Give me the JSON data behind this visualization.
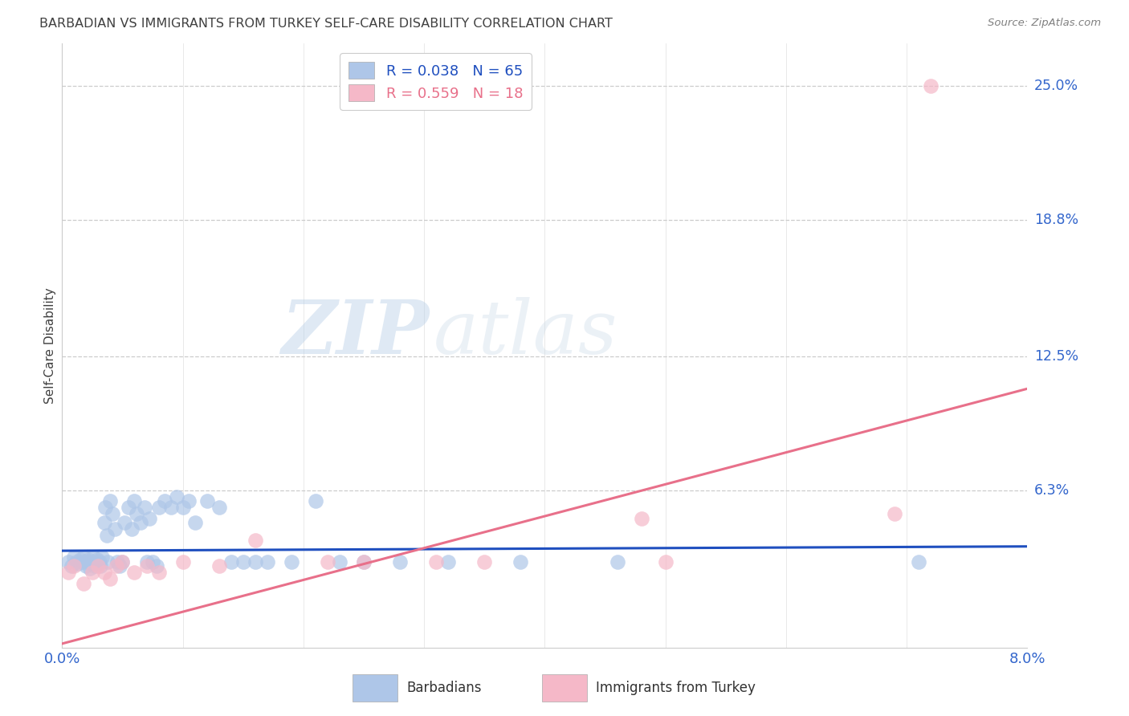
{
  "title": "BARBADIAN VS IMMIGRANTS FROM TURKEY SELF-CARE DISABILITY CORRELATION CHART",
  "source": "Source: ZipAtlas.com",
  "ylabel": "Self-Care Disability",
  "xlim": [
    0.0,
    8.0
  ],
  "ylim": [
    -1.0,
    27.0
  ],
  "ytick_values": [
    6.3,
    12.5,
    18.8,
    25.0
  ],
  "ytick_labels": [
    "6.3%",
    "12.5%",
    "18.8%",
    "25.0%"
  ],
  "barbadian_color": "#aec6e8",
  "turkey_color": "#f5b8c8",
  "regression_blue": "#1f4fbf",
  "regression_pink": "#e8708a",
  "axis_label_color": "#3366cc",
  "title_color": "#404040",
  "watermark_zip": "ZIP",
  "watermark_atlas": "atlas",
  "barbadians_x": [
    0.05,
    0.08,
    0.1,
    0.12,
    0.13,
    0.15,
    0.17,
    0.18,
    0.2,
    0.21,
    0.22,
    0.23,
    0.24,
    0.25,
    0.26,
    0.27,
    0.28,
    0.29,
    0.3,
    0.31,
    0.32,
    0.33,
    0.35,
    0.36,
    0.37,
    0.38,
    0.4,
    0.42,
    0.44,
    0.46,
    0.48,
    0.5,
    0.52,
    0.55,
    0.58,
    0.6,
    0.62,
    0.65,
    0.68,
    0.7,
    0.72,
    0.75,
    0.78,
    0.8,
    0.85,
    0.9,
    0.95,
    1.0,
    1.05,
    1.1,
    1.2,
    1.3,
    1.4,
    1.5,
    1.6,
    1.7,
    1.9,
    2.1,
    2.3,
    2.5,
    2.8,
    3.2,
    3.8,
    4.6,
    7.1
  ],
  "barbadians_y": [
    3.0,
    2.8,
    3.2,
    3.0,
    2.9,
    3.1,
    3.0,
    3.2,
    2.8,
    3.0,
    3.1,
    2.7,
    3.0,
    2.9,
    3.2,
    2.8,
    3.0,
    3.1,
    2.9,
    3.0,
    2.8,
    3.2,
    4.8,
    5.5,
    4.2,
    3.0,
    5.8,
    5.2,
    4.5,
    3.0,
    2.8,
    3.0,
    4.8,
    5.5,
    4.5,
    5.8,
    5.2,
    4.8,
    5.5,
    3.0,
    5.0,
    3.0,
    2.8,
    5.5,
    5.8,
    5.5,
    6.0,
    5.5,
    5.8,
    4.8,
    5.8,
    5.5,
    3.0,
    3.0,
    3.0,
    3.0,
    3.0,
    5.8,
    3.0,
    3.0,
    3.0,
    3.0,
    3.0,
    3.0,
    3.0
  ],
  "turkey_x": [
    0.05,
    0.1,
    0.18,
    0.25,
    0.3,
    0.35,
    0.4,
    0.45,
    0.5,
    0.6,
    0.7,
    0.8,
    1.0,
    1.3,
    1.6,
    2.2,
    2.5,
    3.1,
    3.5,
    4.8,
    5.0,
    6.9,
    7.2
  ],
  "turkey_y": [
    2.5,
    2.8,
    2.0,
    2.5,
    2.8,
    2.5,
    2.2,
    2.8,
    3.0,
    2.5,
    2.8,
    2.5,
    3.0,
    2.8,
    4.0,
    3.0,
    3.0,
    3.0,
    3.0,
    5.0,
    3.0,
    5.2,
    25.0
  ],
  "reg_blue_x0": 0.0,
  "reg_blue_y0": 3.5,
  "reg_blue_x1": 8.0,
  "reg_blue_y1": 3.7,
  "reg_pink_x0": 0.0,
  "reg_pink_y0": -0.8,
  "reg_pink_x1": 8.0,
  "reg_pink_y1": 11.0
}
